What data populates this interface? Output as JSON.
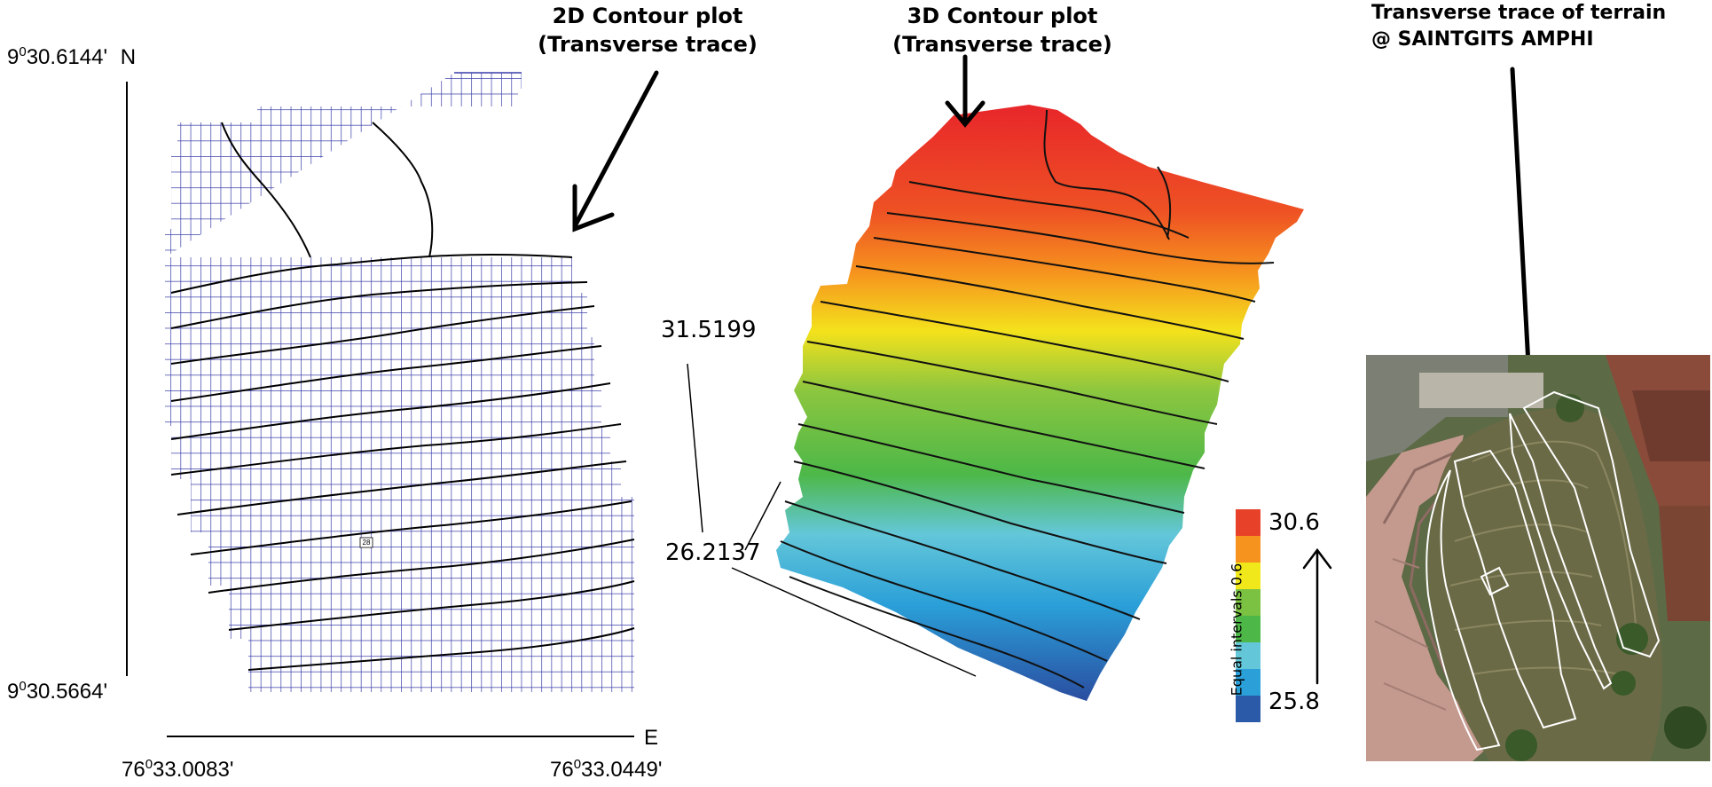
{
  "panel_2d": {
    "title_line1": "2D Contour plot",
    "title_line2": "(Transverse trace)",
    "lat_top_deg": "9",
    "lat_top_min": "30.6144",
    "lat_top_dir": "N",
    "lat_bottom_deg": "9",
    "lat_bottom_min": "30.5664",
    "lon_left_deg": "76",
    "lon_left_min": "33.0083",
    "lon_right_deg": "76",
    "lon_right_min": "33.0449",
    "lon_dir": "E",
    "contour_label": "28"
  },
  "panel_3d": {
    "title_line1": "3D Contour plot",
    "title_line2": "(Transverse trace)",
    "height_max": "31.5199",
    "height_min": "26.2137"
  },
  "legend": {
    "max_label": "30.6",
    "min_label": "25.8",
    "caption": "Equal intervals 0.6",
    "colors": [
      "#e8412a",
      "#f6921e",
      "#f1e81c",
      "#7cc242",
      "#4db848",
      "#64c7d9",
      "#2a9fd8",
      "#2a5aa8"
    ]
  },
  "panel_satellite": {
    "title_line1": "Transverse trace of terrain",
    "title_line2": "@ SAINTGITS AMPHI"
  },
  "colors": {
    "grid": "#3a3ea8",
    "accent": "#000000"
  }
}
